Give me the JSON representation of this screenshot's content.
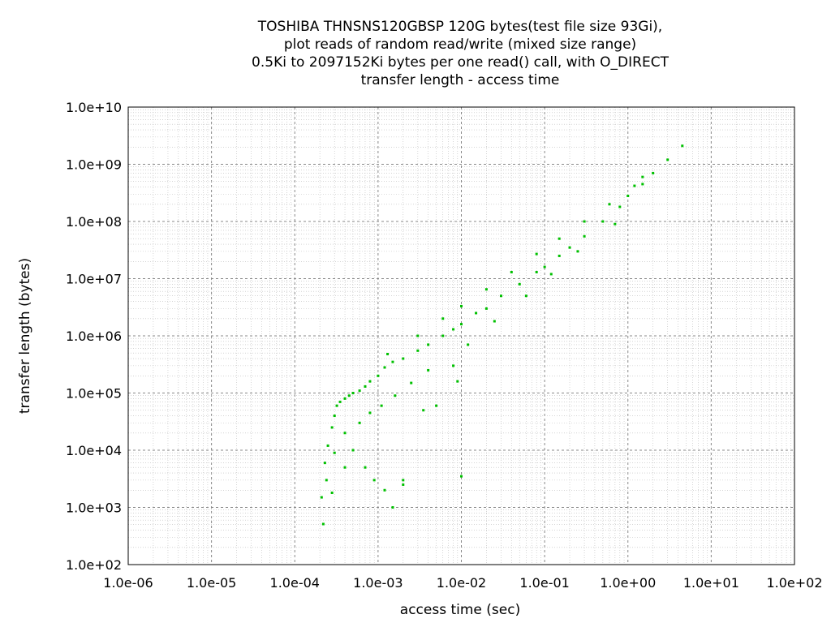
{
  "chart_data": {
    "type": "scatter",
    "title_lines": [
      "TOSHIBA THNSNS120GBSP 120G bytes(test file size 93Gi),",
      "plot reads of random read/write (mixed size range)",
      "0.5Ki to 2097152Ki bytes per one read() call, with O_DIRECT",
      "transfer length - access time"
    ],
    "xlabel": "access time (sec)",
    "ylabel": "transfer length (bytes)",
    "x_scale": "log",
    "y_scale": "log",
    "xlim": [
      1e-06,
      100
    ],
    "ylim": [
      100,
      10000000000
    ],
    "x_tick_labels": [
      "1.0e-06",
      "1.0e-05",
      "1.0e-04",
      "1.0e-03",
      "1.0e-02",
      "1.0e-01",
      "1.0e+00",
      "1.0e+01",
      "1.0e+02"
    ],
    "y_tick_labels": [
      "1.0e+02",
      "1.0e+03",
      "1.0e+04",
      "1.0e+05",
      "1.0e+06",
      "1.0e+07",
      "1.0e+08",
      "1.0e+09",
      "1.0e+10"
    ],
    "grid": true,
    "marker_color": "#00c000",
    "series": [
      {
        "values": [
          [
            0.00022,
            512
          ],
          [
            0.00021,
            1500
          ],
          [
            0.00024,
            3000
          ],
          [
            0.00023,
            6000
          ],
          [
            0.00025,
            12000
          ],
          [
            0.00028,
            25000
          ],
          [
            0.0003,
            40000
          ],
          [
            0.00032,
            60000
          ],
          [
            0.00035,
            70000
          ],
          [
            0.0004,
            80000
          ],
          [
            0.00045,
            90000
          ],
          [
            0.0005,
            100000
          ],
          [
            0.0006,
            110000
          ],
          [
            0.0007,
            130000
          ],
          [
            0.0008,
            160000
          ],
          [
            0.001,
            200000
          ],
          [
            0.0012,
            280000
          ],
          [
            0.0015,
            350000
          ],
          [
            0.002,
            400000
          ],
          [
            0.003,
            550000
          ],
          [
            0.004,
            700000
          ],
          [
            0.006,
            1000000
          ],
          [
            0.008,
            1300000
          ],
          [
            0.01,
            1600000
          ],
          [
            0.015,
            2500000
          ],
          [
            0.02,
            3000000
          ],
          [
            0.03,
            5000000
          ],
          [
            0.05,
            8000000
          ],
          [
            0.08,
            13000000
          ],
          [
            0.1,
            16000000
          ],
          [
            0.15,
            25000000
          ],
          [
            0.2,
            35000000
          ],
          [
            0.3,
            55000000
          ],
          [
            0.5,
            100000000
          ],
          [
            0.8,
            180000000
          ],
          [
            1.0,
            280000000
          ],
          [
            1.5,
            450000000
          ],
          [
            2.0,
            700000000
          ],
          [
            3.0,
            1200000000
          ],
          [
            4.5,
            2100000000
          ],
          [
            0.0013,
            480000
          ],
          [
            0.003,
            1000000
          ],
          [
            0.006,
            2000000
          ],
          [
            0.01,
            3300000
          ],
          [
            0.02,
            6500000
          ],
          [
            0.04,
            13000000
          ],
          [
            0.08,
            27000000
          ],
          [
            0.15,
            50000000
          ],
          [
            0.3,
            100000000
          ],
          [
            0.6,
            200000000
          ],
          [
            1.2,
            420000000
          ],
          [
            0.0004,
            20000
          ],
          [
            0.0005,
            10000
          ],
          [
            0.0007,
            5000
          ],
          [
            0.0009,
            3000
          ],
          [
            0.0012,
            2000
          ],
          [
            0.0015,
            1000
          ],
          [
            0.002,
            3000
          ],
          [
            0.0008,
            45000
          ],
          [
            0.0011,
            60000
          ],
          [
            0.0016,
            90000
          ],
          [
            0.0025,
            150000
          ],
          [
            0.004,
            250000
          ],
          [
            0.005,
            60000
          ],
          [
            0.008,
            300000
          ],
          [
            0.01,
            3500
          ],
          [
            0.009,
            160000
          ],
          [
            0.002,
            2500
          ],
          [
            0.0004,
            5000
          ],
          [
            0.00028,
            1800
          ],
          [
            0.0003,
            9000
          ],
          [
            0.0006,
            30000
          ],
          [
            0.0035,
            50000
          ],
          [
            0.012,
            700000
          ],
          [
            0.025,
            1800000
          ],
          [
            0.06,
            5000000
          ],
          [
            0.12,
            12000000
          ],
          [
            0.25,
            30000000
          ],
          [
            0.7,
            90000000
          ],
          [
            1.5,
            600000000
          ]
        ]
      }
    ]
  }
}
